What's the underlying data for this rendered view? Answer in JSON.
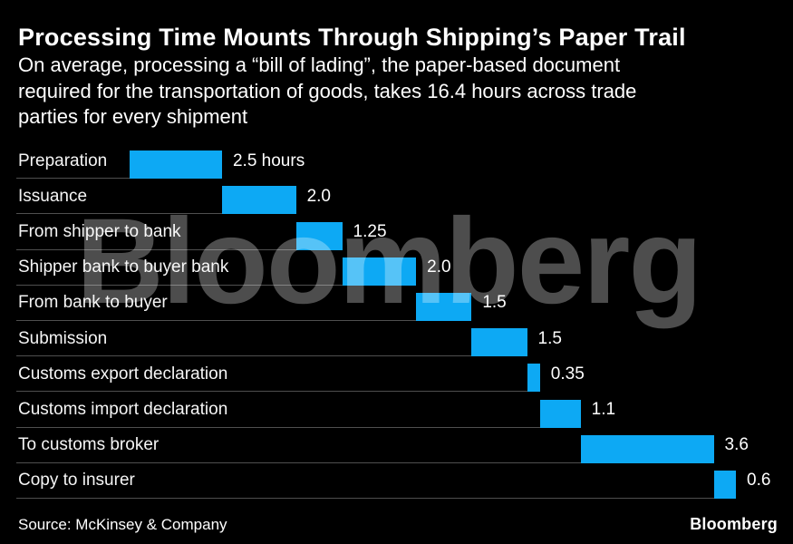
{
  "header": {
    "title": "Processing Time Mounts Through Shipping’s Paper Trail",
    "subtitle": "On average, processing a “bill of lading”, the paper-based document\nrequired for the transportation of goods, takes 16.4 hours across trade\nparties for every shipment"
  },
  "chart_data": {
    "type": "bar",
    "subtype": "horizontal-waterfall",
    "unit": "hours",
    "total_hours": 16.4,
    "axis_range": [
      0,
      16.4
    ],
    "grid": "row-rules-only",
    "bar_color": "#0da9f4",
    "rule_color": "#4f4f4f",
    "categories": [
      "Preparation",
      "Issuance",
      "From shipper to bank",
      "Shipper bank to buyer bank",
      "From bank to buyer",
      "Submission",
      "Customs export declaration",
      "Customs import declaration",
      "To customs broker",
      "Copy to insurer"
    ],
    "values": [
      2.5,
      2.0,
      1.25,
      2.0,
      1.5,
      1.5,
      0.35,
      1.1,
      3.6,
      0.6
    ],
    "value_labels": [
      "2.5 hours",
      "2.0",
      "1.25",
      "2.0",
      "1.5",
      "1.5",
      "0.35",
      "1.1",
      "3.6",
      "0.6"
    ]
  },
  "watermark": {
    "text": "Bloomberg"
  },
  "footer": {
    "source": "Source: McKinsey & Company",
    "logo": "Bloomberg"
  }
}
